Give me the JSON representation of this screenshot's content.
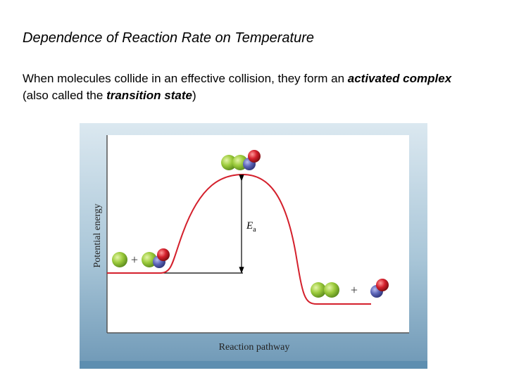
{
  "header": {
    "title": "Dependence of Reaction Rate on Temperature"
  },
  "body": {
    "text_before": "When molecules collide in an effective collision, they form an ",
    "term1": "activated complex",
    "text_middle": " (also called the ",
    "term2": "transition state",
    "text_after": ")"
  },
  "figure": {
    "y_axis_label": "Potential energy",
    "x_axis_label": "Reaction pathway",
    "ea_symbol": "E",
    "ea_subscript": "a",
    "plus_left": "+",
    "plus_right": "+"
  }
}
